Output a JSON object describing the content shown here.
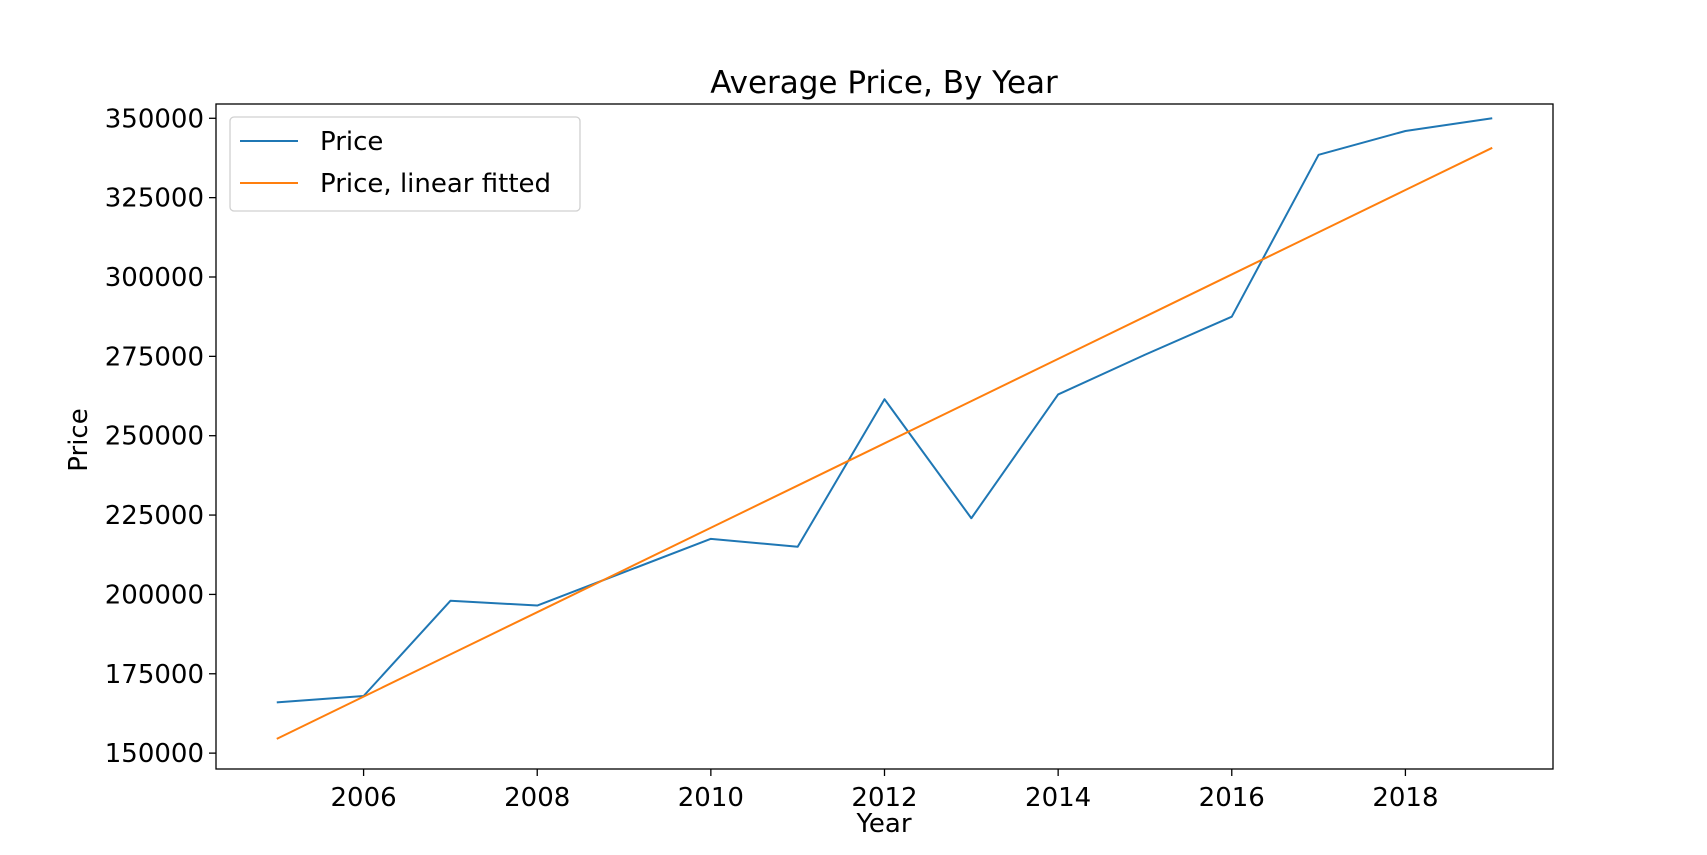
{
  "chart_data": {
    "type": "line",
    "title": "Average Price, By Year",
    "xlabel": "Year",
    "ylabel": "Price",
    "xlim": [
      2004.3,
      2019.7
    ],
    "ylim": [
      145000,
      354500
    ],
    "xticks": [
      2006,
      2008,
      2010,
      2012,
      2014,
      2016,
      2018
    ],
    "xtick_labels": [
      "2006",
      "2008",
      "2010",
      "2012",
      "2014",
      "2016",
      "2018"
    ],
    "yticks": [
      150000,
      175000,
      200000,
      225000,
      250000,
      275000,
      300000,
      325000,
      350000
    ],
    "ytick_labels": [
      "150000",
      "175000",
      "200000",
      "225000",
      "250000",
      "275000",
      "300000",
      "325000",
      "350000"
    ],
    "grid": false,
    "legend_position": "top-left",
    "x": [
      2005,
      2006,
      2007,
      2008,
      2009,
      2010,
      2011,
      2012,
      2013,
      2014,
      2015,
      2016,
      2017,
      2018,
      2019
    ],
    "series": [
      {
        "name": "Price",
        "color": "#1f77b4",
        "values": [
          166000,
          168000,
          198000,
          196500,
          207000,
          217500,
          215000,
          261500,
          224000,
          263000,
          275500,
          287500,
          338500,
          346000,
          350000
        ]
      },
      {
        "name": "Price, linear fitted",
        "color": "#ff7f0e",
        "values": [
          154500,
          167800,
          181100,
          194400,
          207700,
          221000,
          234300,
          247600,
          260900,
          274200,
          287500,
          300800,
          314100,
          327400,
          340700
        ]
      }
    ]
  }
}
